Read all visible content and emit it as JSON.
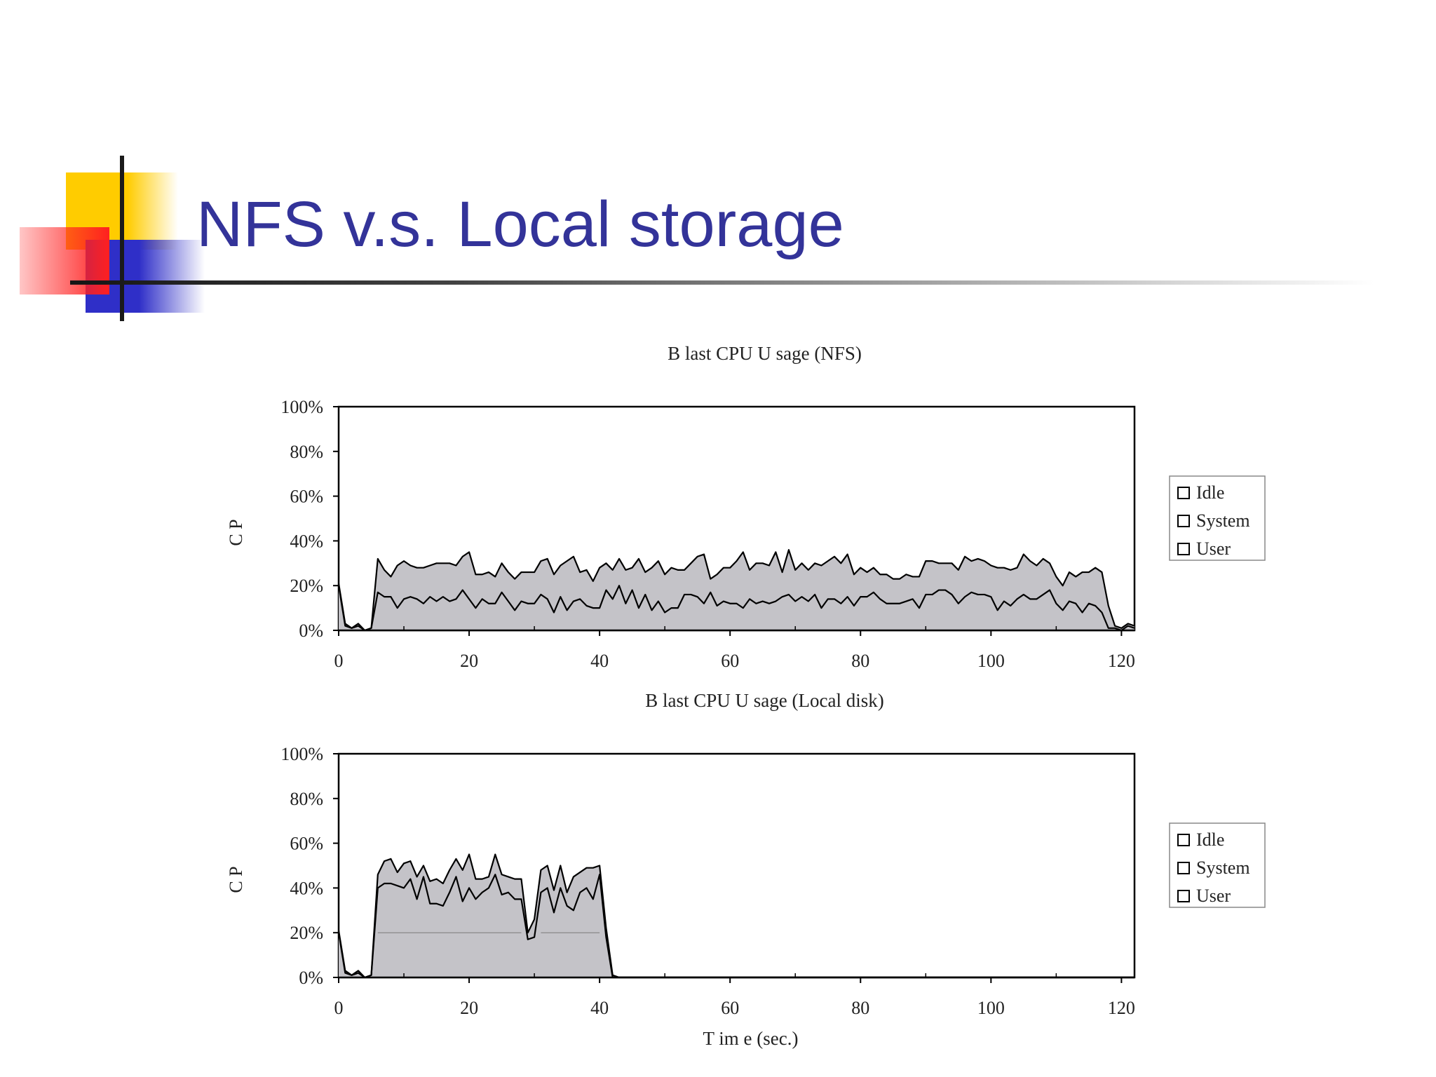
{
  "slide": {
    "title": "NFS v.s. Local storage"
  },
  "chart_data": [
    {
      "type": "area",
      "stacked": true,
      "title": "B last CPU U sage (NFS)",
      "ylabel": "C P",
      "xlabel": "",
      "xlim": [
        0,
        122
      ],
      "ylim": [
        0,
        100
      ],
      "x_ticks": [
        "0",
        "20",
        "40",
        "60",
        "80",
        "100",
        "120"
      ],
      "y_ticks": [
        "0%",
        "20%",
        "40%",
        "60%",
        "80%",
        "100%"
      ],
      "legend": [
        "Idle",
        "System",
        "User"
      ],
      "legend_position": "right",
      "x": [
        0,
        1,
        2,
        3,
        4,
        5,
        6,
        7,
        8,
        9,
        10,
        11,
        12,
        13,
        14,
        15,
        16,
        17,
        18,
        19,
        20,
        21,
        22,
        23,
        24,
        25,
        26,
        27,
        28,
        29,
        30,
        31,
        32,
        33,
        34,
        35,
        36,
        37,
        38,
        39,
        40,
        41,
        42,
        43,
        44,
        45,
        46,
        47,
        48,
        49,
        50,
        51,
        52,
        53,
        54,
        55,
        56,
        57,
        58,
        59,
        60,
        61,
        62,
        63,
        64,
        65,
        66,
        67,
        68,
        69,
        70,
        71,
        72,
        73,
        74,
        75,
        76,
        77,
        78,
        79,
        80,
        81,
        82,
        83,
        84,
        85,
        86,
        87,
        88,
        89,
        90,
        91,
        92,
        93,
        94,
        95,
        96,
        97,
        98,
        99,
        100,
        101,
        102,
        103,
        104,
        105,
        106,
        107,
        108,
        109,
        110,
        111,
        112,
        113,
        114,
        115,
        116,
        117,
        118,
        119,
        120,
        121,
        122
      ],
      "series": [
        {
          "name": "User",
          "values": [
            20,
            2,
            1,
            2,
            0,
            1,
            17,
            15,
            15,
            10,
            14,
            15,
            14,
            12,
            15,
            13,
            15,
            13,
            14,
            18,
            14,
            10,
            14,
            12,
            12,
            17,
            13,
            9,
            13,
            12,
            12,
            16,
            14,
            8,
            15,
            9,
            13,
            14,
            11,
            10,
            10,
            18,
            14,
            20,
            12,
            18,
            10,
            16,
            9,
            13,
            8,
            10,
            10,
            16,
            16,
            15,
            12,
            17,
            11,
            13,
            12,
            12,
            10,
            14,
            12,
            13,
            12,
            13,
            15,
            16,
            13,
            15,
            13,
            16,
            10,
            14,
            14,
            12,
            15,
            11,
            15,
            15,
            17,
            14,
            12,
            12,
            12,
            13,
            14,
            10,
            16,
            16,
            18,
            18,
            16,
            12,
            15,
            17,
            16,
            16,
            15,
            9,
            13,
            11,
            14,
            16,
            14,
            14,
            16,
            18,
            12,
            9,
            13,
            12,
            8,
            12,
            11,
            8,
            1,
            1,
            0,
            2,
            1
          ]
        },
        {
          "name": "System",
          "values": [
            1,
            1,
            0,
            1,
            0,
            0,
            15,
            12,
            9,
            19,
            17,
            14,
            14,
            16,
            14,
            17,
            15,
            17,
            15,
            15,
            21,
            15,
            11,
            14,
            12,
            13,
            13,
            14,
            13,
            14,
            14,
            15,
            18,
            17,
            14,
            22,
            20,
            12,
            16,
            12,
            18,
            12,
            13,
            12,
            15,
            10,
            22,
            10,
            19,
            18,
            17,
            18,
            17,
            11,
            14,
            18,
            22,
            6,
            14,
            15,
            16,
            19,
            25,
            13,
            18,
            17,
            17,
            22,
            11,
            20,
            14,
            15,
            14,
            14,
            19,
            17,
            19,
            18,
            19,
            14,
            13,
            11,
            11,
            11,
            13,
            11,
            11,
            12,
            10,
            14,
            15,
            15,
            12,
            12,
            14,
            15,
            18,
            14,
            16,
            15,
            14,
            19,
            15,
            16,
            14,
            18,
            17,
            15,
            16,
            12,
            12,
            11,
            13,
            12,
            18,
            14,
            17,
            18,
            10,
            1,
            1,
            1,
            1
          ]
        }
      ]
    },
    {
      "type": "area",
      "stacked": true,
      "title": "B last CPU U sage (Local disk)",
      "ylabel": "C P",
      "xlabel": "T im e (sec.)",
      "xlim": [
        0,
        122
      ],
      "ylim": [
        0,
        100
      ],
      "x_ticks": [
        "0",
        "20",
        "40",
        "60",
        "80",
        "100",
        "120"
      ],
      "y_ticks": [
        "0%",
        "20%",
        "40%",
        "60%",
        "80%",
        "100%"
      ],
      "legend": [
        "Idle",
        "System",
        "User"
      ],
      "legend_position": "right",
      "x": [
        0,
        1,
        2,
        3,
        4,
        5,
        6,
        7,
        8,
        9,
        10,
        11,
        12,
        13,
        14,
        15,
        16,
        17,
        18,
        19,
        20,
        21,
        22,
        23,
        24,
        25,
        26,
        27,
        28,
        29,
        30,
        31,
        32,
        33,
        34,
        35,
        36,
        37,
        38,
        39,
        40,
        41,
        42,
        43,
        44,
        45,
        46,
        47,
        48,
        49,
        50,
        51,
        52,
        53,
        54,
        55,
        56,
        57,
        58,
        59,
        60,
        61,
        62,
        63,
        64,
        65,
        66,
        67,
        68,
        69,
        70,
        71,
        72,
        73,
        74,
        75,
        76,
        77,
        78,
        79,
        80,
        81,
        82,
        83,
        84,
        85,
        86,
        87,
        88,
        89,
        90,
        91,
        92,
        93,
        94,
        95,
        96,
        97,
        98,
        99,
        100,
        101,
        102,
        103,
        104,
        105,
        106,
        107,
        108,
        109,
        110,
        111,
        112,
        113,
        114,
        115,
        116,
        117,
        118,
        119,
        120,
        121,
        122
      ],
      "series": [
        {
          "name": "User",
          "values": [
            20,
            2,
            1,
            2,
            0,
            1,
            40,
            42,
            42,
            41,
            40,
            44,
            35,
            45,
            33,
            33,
            32,
            38,
            45,
            34,
            40,
            35,
            38,
            40,
            46,
            37,
            38,
            35,
            35,
            17,
            18,
            38,
            40,
            29,
            40,
            32,
            30,
            38,
            40,
            35,
            46,
            18,
            0,
            0,
            0,
            0,
            0,
            0,
            0,
            0,
            0,
            0,
            0,
            0,
            0,
            0,
            0,
            0,
            0,
            0,
            0,
            0,
            0,
            0,
            0,
            0,
            0,
            0,
            0,
            0,
            0,
            0,
            0,
            0,
            0,
            0,
            0,
            0,
            0,
            0,
            0,
            0,
            0,
            0,
            0,
            0,
            0,
            0,
            0,
            0,
            0,
            0,
            0,
            0,
            0,
            0,
            0,
            0,
            0,
            0,
            0,
            0,
            0,
            0,
            0,
            0,
            0,
            0,
            0,
            0,
            0,
            0,
            0,
            0,
            0,
            0,
            0,
            0,
            0,
            0,
            0,
            0,
            0
          ]
        },
        {
          "name": "System",
          "values": [
            1,
            1,
            0,
            1,
            0,
            0,
            6,
            10,
            11,
            6,
            11,
            8,
            10,
            5,
            10,
            11,
            10,
            10,
            8,
            14,
            15,
            9,
            6,
            5,
            9,
            9,
            7,
            9,
            9,
            3,
            8,
            10,
            10,
            10,
            10,
            6,
            15,
            9,
            9,
            14,
            4,
            4,
            1,
            0,
            0,
            0,
            0,
            0,
            0,
            0,
            0,
            0,
            0,
            0,
            0,
            0,
            0,
            0,
            0,
            0,
            0,
            0,
            0,
            0,
            0,
            0,
            0,
            0,
            0,
            0,
            0,
            0,
            0,
            0,
            0,
            0,
            0,
            0,
            0,
            0,
            0,
            0,
            0,
            0,
            0,
            0,
            0,
            0,
            0,
            0,
            0,
            0,
            0,
            0,
            0,
            0,
            0,
            0,
            0,
            0,
            0,
            0,
            0,
            0,
            0,
            0,
            0,
            0,
            0,
            0,
            0,
            0,
            0,
            0,
            0,
            0,
            0,
            0,
            0,
            0,
            0,
            0,
            0
          ]
        }
      ]
    }
  ]
}
